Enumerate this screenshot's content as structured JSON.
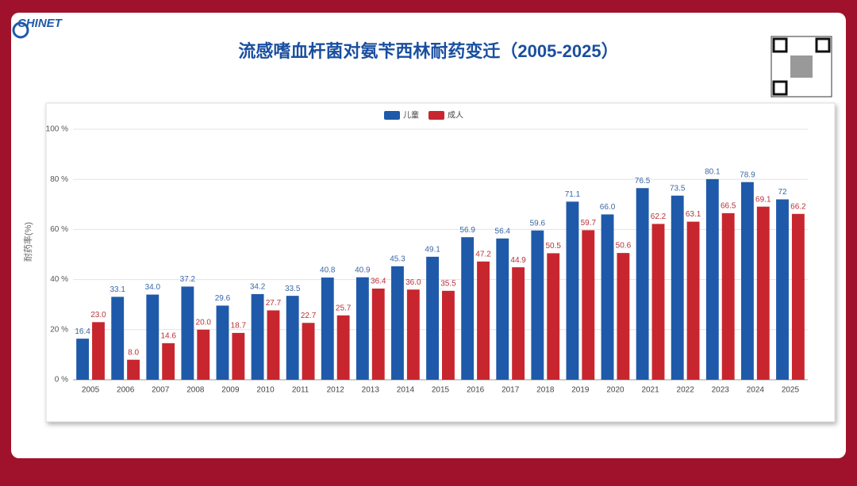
{
  "logo": "CHINET",
  "chart_data": {
    "type": "bar",
    "title": "流感嗜血杆菌对氨苄西林耐药变迁（2005-2025）",
    "ylabel": "耐药率(%)",
    "categories": [
      "2005",
      "2006",
      "2007",
      "2008",
      "2009",
      "2010",
      "2011",
      "2012",
      "2013",
      "2014",
      "2015",
      "2016",
      "2017",
      "2018",
      "2019",
      "2020",
      "2021",
      "2022",
      "2023",
      "2024",
      "2025"
    ],
    "series": [
      {
        "name": "儿童",
        "color": "#1f5aaa",
        "values": [
          16.4,
          33.1,
          34.0,
          37.2,
          29.6,
          34.2,
          33.5,
          40.8,
          40.9,
          45.3,
          49.1,
          56.9,
          56.4,
          59.6,
          71.1,
          66.0,
          76.5,
          73.5,
          80.1,
          78.9,
          72
        ],
        "value_labels": [
          "16.4",
          "33.1",
          "34.0",
          "37.2",
          "29.6",
          "34.2",
          "33.5",
          "40.8",
          "40.9",
          "45.3",
          "49.1",
          "56.9",
          "56.4",
          "59.6",
          "71.1",
          "66.0",
          "76.5",
          "73.5",
          "80.1",
          "78.9",
          "72"
        ]
      },
      {
        "name": "成人",
        "color": "#c8262f",
        "values": [
          23.0,
          8.0,
          14.6,
          20.0,
          18.7,
          27.7,
          22.7,
          25.7,
          36.4,
          36.0,
          35.5,
          47.2,
          44.9,
          50.5,
          59.7,
          50.6,
          62.2,
          63.1,
          66.5,
          69.1,
          66.2
        ],
        "value_labels": [
          "23.0",
          "8.0",
          "14.6",
          "20.0",
          "18.7",
          "27.7",
          "22.7",
          "25.7",
          "36.4",
          "36.0",
          "35.5",
          "47.2",
          "44.9",
          "50.5",
          "59.7",
          "50.6",
          "62.2",
          "63.1",
          "66.5",
          "69.1",
          "66.2"
        ]
      }
    ],
    "ylim": [
      0,
      100
    ],
    "yticks": [
      {
        "value": 0,
        "label": "0 %"
      },
      {
        "value": 20,
        "label": "20 %"
      },
      {
        "value": 40,
        "label": "40 %"
      },
      {
        "value": 60,
        "label": "60 %"
      },
      {
        "value": 80,
        "label": "80 %"
      },
      {
        "value": 100,
        "label": "100 %"
      }
    ],
    "grid": true,
    "legend": "top"
  }
}
